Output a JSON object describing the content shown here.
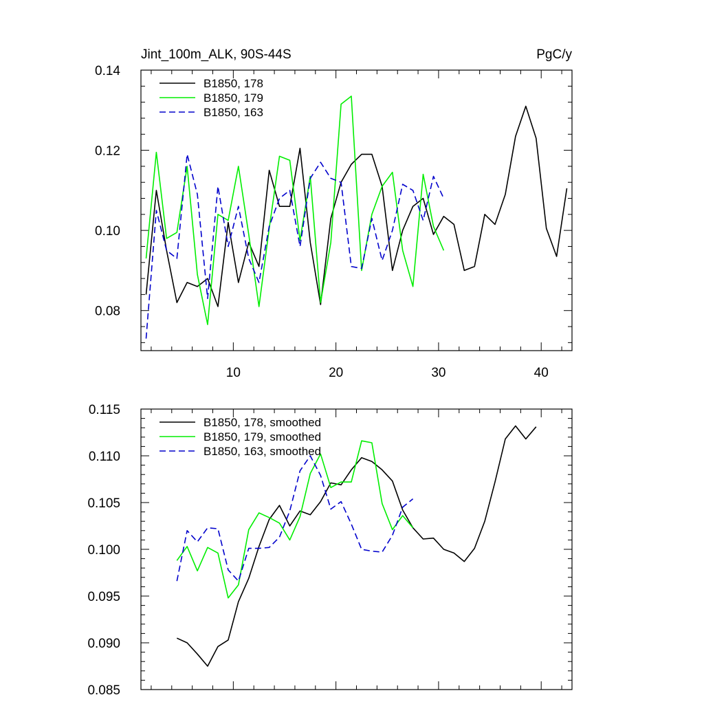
{
  "chart_data": [
    {
      "type": "line",
      "title": "Jint_100m_ALK, 90S-44S",
      "units": "PgC/y",
      "xlim": [
        1,
        43
      ],
      "ylim": [
        0.07,
        0.14
      ],
      "x_ticks": [
        10,
        20,
        30,
        40
      ],
      "x_tick_labels": [
        "10",
        "20",
        "30",
        "40"
      ],
      "y_ticks": [
        0.08,
        0.1,
        0.12,
        0.14
      ],
      "y_tick_labels": [
        "0.08",
        "0.10",
        "0.12",
        "0.14"
      ],
      "legend_position": "top-left",
      "grid": false,
      "series": [
        {
          "name": "B1850, 178",
          "color": "#000000",
          "dash": "solid",
          "x": [
            1.5,
            2.5,
            3.5,
            4.5,
            5.5,
            6.5,
            7.5,
            8.5,
            9.5,
            10.5,
            11.5,
            12.5,
            13.5,
            14.5,
            15.5,
            16.5,
            17.5,
            18.5,
            19.5,
            20.5,
            21.5,
            22.5,
            23.5,
            24.5,
            25.5,
            26.5,
            27.5,
            28.5,
            29.5,
            30.5,
            31.5,
            32.5,
            33.5,
            34.5,
            35.5,
            36.5,
            37.5,
            38.5,
            39.5,
            40.5,
            41.5,
            42.5
          ],
          "values": [
            0.084,
            0.11,
            0.095,
            0.082,
            0.087,
            0.086,
            0.088,
            0.081,
            0.102,
            0.087,
            0.097,
            0.091,
            0.115,
            0.106,
            0.106,
            0.1205,
            0.097,
            0.0815,
            0.103,
            0.112,
            0.1165,
            0.119,
            0.119,
            0.111,
            0.09,
            0.1,
            0.106,
            0.108,
            0.099,
            0.1035,
            0.1015,
            0.09,
            0.091,
            0.104,
            0.1015,
            0.109,
            0.1235,
            0.131,
            0.123,
            0.1005,
            0.0935,
            0.1105
          ]
        },
        {
          "name": "B1850, 179",
          "color": "#00ee00",
          "dash": "solid",
          "x": [
            1.5,
            2.5,
            3.5,
            4.5,
            5.5,
            6.5,
            7.5,
            8.5,
            9.5,
            10.5,
            11.5,
            12.5,
            13.5,
            14.5,
            15.5,
            16.5,
            17.5,
            18.5,
            19.5,
            20.5,
            21.5,
            22.5,
            23.5,
            24.5,
            25.5,
            26.5,
            27.5,
            28.5,
            29.5,
            30.5
          ],
          "values": [
            0.093,
            0.1195,
            0.098,
            0.0995,
            0.116,
            0.089,
            0.0765,
            0.104,
            0.1025,
            0.116,
            0.099,
            0.081,
            0.1005,
            0.1185,
            0.1175,
            0.0975,
            0.1135,
            0.082,
            0.097,
            0.1315,
            0.1335,
            0.09,
            0.104,
            0.111,
            0.1145,
            0.095,
            0.086,
            0.114,
            0.101,
            0.095
          ]
        },
        {
          "name": "B1850, 163",
          "color": "#0000cc",
          "dash": "dashed",
          "x": [
            1.5,
            2.5,
            3.5,
            4.5,
            5.5,
            6.5,
            7.5,
            8.5,
            9.5,
            10.5,
            11.5,
            12.5,
            13.5,
            14.5,
            15.5,
            16.5,
            17.5,
            18.5,
            19.5,
            20.5,
            21.5,
            22.5,
            23.5,
            24.5,
            25.5,
            26.5,
            27.5,
            28.5,
            29.5,
            30.5
          ],
          "values": [
            0.073,
            0.105,
            0.095,
            0.093,
            0.119,
            0.109,
            0.083,
            0.111,
            0.096,
            0.106,
            0.093,
            0.087,
            0.101,
            0.108,
            0.11,
            0.096,
            0.113,
            0.117,
            0.113,
            0.112,
            0.091,
            0.0905,
            0.103,
            0.0925,
            0.1,
            0.1115,
            0.11,
            0.1025,
            0.1135,
            0.108
          ]
        }
      ]
    },
    {
      "type": "line",
      "xlim": [
        1,
        43
      ],
      "ylim": [
        0.085,
        0.115
      ],
      "x_ticks": [
        10,
        20,
        30,
        40
      ],
      "y_ticks": [
        0.085,
        0.09,
        0.095,
        0.1,
        0.105,
        0.11,
        0.115
      ],
      "y_tick_labels": [
        "0.085",
        "0.090",
        "0.095",
        "0.100",
        "0.105",
        "0.110",
        "0.115"
      ],
      "legend_position": "top-left",
      "grid": false,
      "series": [
        {
          "name": "B1850, 178, smoothed",
          "color": "#000000",
          "dash": "solid",
          "x": [
            4.5,
            5.5,
            6.5,
            7.5,
            8.5,
            9.5,
            10.5,
            11.5,
            12.5,
            13.5,
            14.5,
            15.5,
            16.5,
            17.5,
            18.5,
            19.5,
            20.5,
            21.5,
            22.5,
            23.5,
            24.5,
            25.5,
            26.5,
            27.5,
            28.5,
            29.5,
            30.5,
            31.5,
            32.5,
            33.5,
            34.5,
            35.5,
            36.5,
            37.5,
            38.5,
            39.5
          ],
          "values": [
            0.0905,
            0.09,
            0.0888,
            0.0875,
            0.0896,
            0.0903,
            0.0944,
            0.0969,
            0.1003,
            0.1032,
            0.1047,
            0.1025,
            0.1041,
            0.1037,
            0.1051,
            0.1071,
            0.1069,
            0.1085,
            0.1098,
            0.1094,
            0.1085,
            0.1073,
            0.1042,
            0.1023,
            0.1011,
            0.1012,
            0.1,
            0.0996,
            0.0987,
            0.1001,
            0.103,
            0.1072,
            0.1118,
            0.1132,
            0.1118,
            0.1131
          ]
        },
        {
          "name": "B1850, 179, smoothed",
          "color": "#00ee00",
          "dash": "solid",
          "x": [
            4.5,
            5.5,
            6.5,
            7.5,
            8.5,
            9.5,
            10.5,
            11.5,
            12.5,
            13.5,
            14.5,
            15.5,
            16.5,
            17.5,
            18.5,
            19.5,
            20.5,
            21.5,
            22.5,
            23.5,
            24.5,
            25.5,
            26.5,
            27.5
          ],
          "values": [
            0.0988,
            0.1003,
            0.0977,
            0.1002,
            0.0996,
            0.0948,
            0.0962,
            0.1021,
            0.1039,
            0.1034,
            0.1028,
            0.101,
            0.1035,
            0.1081,
            0.1102,
            0.1066,
            0.1072,
            0.1072,
            0.1116,
            0.1114,
            0.1049,
            0.1021,
            0.1036,
            0.1023
          ]
        },
        {
          "name": "B1850, 163, smoothed",
          "color": "#0000cc",
          "dash": "dashed",
          "x": [
            4.5,
            5.5,
            6.5,
            7.5,
            8.5,
            9.5,
            10.5,
            11.5,
            12.5,
            13.5,
            14.5,
            15.5,
            16.5,
            17.5,
            18.5,
            19.5,
            20.5,
            21.5,
            22.5,
            23.5,
            24.5,
            25.5,
            26.5,
            27.5
          ],
          "values": [
            0.0966,
            0.102,
            0.1008,
            0.1023,
            0.1022,
            0.0978,
            0.0966,
            0.1001,
            0.1001,
            0.1002,
            0.1013,
            0.1041,
            0.1084,
            0.11,
            0.1079,
            0.1043,
            0.1051,
            0.1027,
            0.1,
            0.0998,
            0.0997,
            0.1015,
            0.1045,
            0.1054
          ]
        }
      ]
    }
  ]
}
